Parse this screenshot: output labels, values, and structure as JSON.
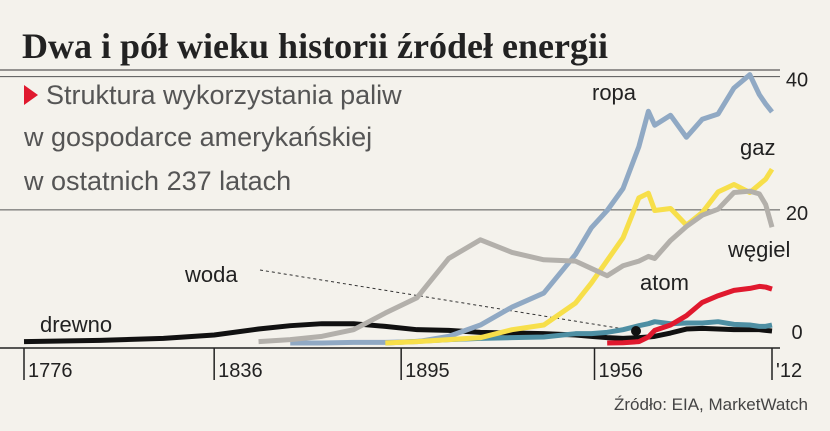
{
  "chart_data": {
    "type": "line",
    "title": "Dwa i pół wieku historii źródeł energii",
    "subtitle": [
      "Struktura wykorzystania paliw",
      "w gospodarce amerykańskiej",
      "w ostatnich 237 latach"
    ],
    "source": "Źródło: EIA, MarketWatch",
    "x": [
      1776,
      1800,
      1820,
      1836,
      1850,
      1860,
      1870,
      1880,
      1890,
      1900,
      1910,
      1920,
      1930,
      1940,
      1950,
      1955,
      1960,
      1965,
      1970,
      1973,
      1975,
      1980,
      1985,
      1990,
      1995,
      2000,
      2005,
      2008,
      2010,
      2012
    ],
    "series": [
      {
        "name": "drewno",
        "color": "#111111",
        "values": [
          0.2,
          0.4,
          0.7,
          1.2,
          2.1,
          2.6,
          2.9,
          2.9,
          2.5,
          2.0,
          1.9,
          1.6,
          1.5,
          1.4,
          1.2,
          1.0,
          0.8,
          0.7,
          0.8,
          0.9,
          1.0,
          1.5,
          2.1,
          2.2,
          2.1,
          2.0,
          2.0,
          2.0,
          1.9,
          1.8
        ]
      },
      {
        "name": "woda",
        "color": "#4e8fa3",
        "values": [
          null,
          null,
          null,
          null,
          null,
          null,
          null,
          null,
          0,
          0.25,
          0.5,
          0.7,
          0.8,
          0.9,
          1.4,
          1.4,
          1.6,
          2.0,
          2.6,
          2.9,
          3.2,
          2.9,
          3.0,
          3.0,
          3.2,
          2.8,
          2.7,
          2.5,
          2.5,
          2.7
        ]
      },
      {
        "name": "ropa",
        "color": "#90a9c4",
        "values": [
          null,
          null,
          null,
          null,
          null,
          0,
          0,
          0.1,
          0.1,
          0.2,
          1.0,
          2.7,
          5.4,
          7.5,
          13.3,
          17.3,
          19.9,
          23.2,
          29.5,
          34.8,
          32.7,
          34.2,
          30.9,
          33.6,
          34.4,
          38.3,
          40.3,
          37.3,
          35.9,
          34.7
        ]
      },
      {
        "name": "gaz",
        "color": "#f7df4a",
        "values": [
          null,
          null,
          null,
          null,
          null,
          null,
          null,
          null,
          0,
          0.2,
          0.5,
          0.8,
          2.0,
          2.7,
          6.0,
          9.0,
          12.4,
          15.8,
          21.8,
          22.5,
          19.9,
          20.2,
          17.7,
          19.6,
          22.7,
          23.8,
          22.6,
          23.8,
          24.6,
          26.1
        ]
      },
      {
        "name": "węgiel",
        "color": "#b3b0ab",
        "values": [
          null,
          null,
          null,
          null,
          0.2,
          0.5,
          1.0,
          2.0,
          4.5,
          6.8,
          12.7,
          15.5,
          13.6,
          12.5,
          12.3,
          11.2,
          10.1,
          11.6,
          12.3,
          13.0,
          12.7,
          15.4,
          17.5,
          19.2,
          20.1,
          22.6,
          22.8,
          22.4,
          20.8,
          17.4
        ]
      },
      {
        "name": "atom",
        "color": "#e0192e",
        "values": [
          null,
          null,
          null,
          null,
          null,
          null,
          null,
          null,
          null,
          null,
          null,
          null,
          null,
          null,
          null,
          null,
          0,
          0.04,
          0.2,
          0.9,
          1.9,
          2.7,
          4.1,
          6.1,
          7.1,
          7.9,
          8.2,
          8.5,
          8.4,
          8.1
        ]
      }
    ],
    "xlim": [
      1776,
      2012
    ],
    "xticks": [
      1776,
      1836,
      1895,
      1956,
      {
        "value": 2012,
        "label": "'12"
      }
    ],
    "ylim": [
      0,
      41
    ],
    "yticks": [
      0,
      20,
      40
    ],
    "grid": true
  }
}
